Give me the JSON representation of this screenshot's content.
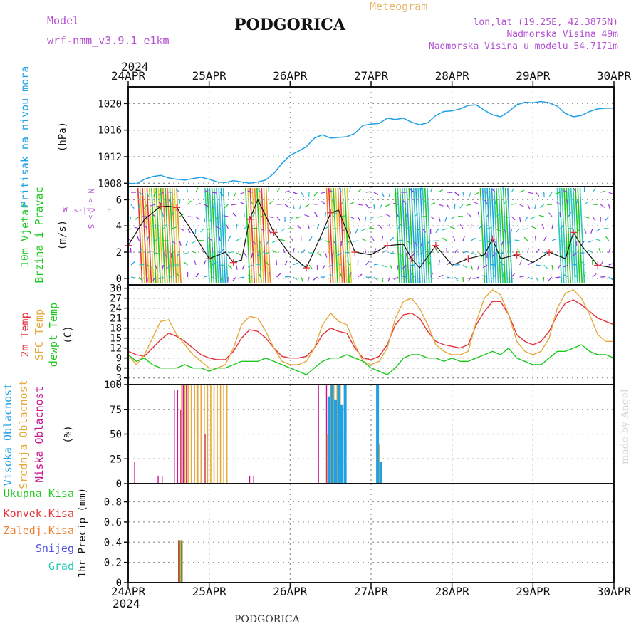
{
  "header": {
    "model_label": "Model",
    "model_name": "wrf-nmm_v3.9.1 e1km",
    "title": "PODGORICA",
    "meteogram_label": "Meteogram",
    "coords": "lon,lat (19.25E, 42.3875N)",
    "elev": "Nadmorska Visina 49m",
    "elev_model": "Nadmorska Visina u modelu 54.7171m",
    "footer_title": "PODGORICA",
    "watermark": "made by Angel"
  },
  "colors": {
    "pressure": "#1ea0e6",
    "temp2m": "#e6323c",
    "sfc": "#e6aa3c",
    "dewpt": "#1ec81e",
    "visoka": "#1ea0e6",
    "srednja": "#e6aa3c",
    "niska": "#c8148c",
    "ukupna": "#1ec81e",
    "konvek": "#e6323c",
    "zaledj": "#f08232",
    "snijeg": "#5050e6",
    "grad": "#28c8b4",
    "title_purple": "#b450d2",
    "meteogram": "#e6b464"
  },
  "time_axis": {
    "top_year": "2024",
    "bottom_year": "2024",
    "ticks": [
      "24APR",
      "25APR",
      "26APR",
      "27APR",
      "28APR",
      "29APR",
      "30APR"
    ]
  },
  "chart_data": [
    {
      "type": "line",
      "panel": "pressure",
      "title": "",
      "ylabel": "Pritisak na nivou mora",
      "unit": "(hPa)",
      "ylim": [
        1007.5,
        1022.5
      ],
      "yticks": [
        "1008",
        "1012",
        "1016",
        "1020"
      ],
      "x_days": [
        0,
        0.1,
        0.2,
        0.3,
        0.4,
        0.5,
        0.6,
        0.7,
        0.8,
        0.9,
        1.0,
        1.1,
        1.2,
        1.3,
        1.4,
        1.5,
        1.6,
        1.7,
        1.8,
        1.9,
        2.0,
        2.1,
        2.2,
        2.3,
        2.4,
        2.5,
        2.6,
        2.7,
        2.8,
        2.9,
        3.0,
        3.1,
        3.2,
        3.3,
        3.4,
        3.5,
        3.6,
        3.7,
        3.8,
        3.9,
        4.0,
        4.1,
        4.2,
        4.3,
        4.4,
        4.5,
        4.6,
        4.7,
        4.8,
        4.9,
        5.0,
        5.1,
        5.2,
        5.3,
        5.4,
        5.5,
        5.6,
        5.7,
        5.8,
        5.9,
        6.0
      ],
      "series": [
        {
          "values": [
            1008.0,
            1007.9,
            1008.6,
            1009.0,
            1009.2,
            1008.8,
            1008.6,
            1008.5,
            1008.7,
            1008.9,
            1008.6,
            1008.2,
            1008.1,
            1008.4,
            1008.2,
            1008.0,
            1008.2,
            1008.5,
            1009.5,
            1011.0,
            1012.2,
            1012.8,
            1013.5,
            1014.8,
            1015.3,
            1014.8,
            1014.9,
            1015.0,
            1015.5,
            1016.7,
            1016.9,
            1017.0,
            1017.8,
            1017.6,
            1017.8,
            1017.2,
            1016.8,
            1017.1,
            1018.2,
            1018.8,
            1018.9,
            1019.2,
            1019.7,
            1019.8,
            1019.0,
            1018.3,
            1018.0,
            1018.8,
            1019.8,
            1020.2,
            1020.1,
            1020.3,
            1020.1,
            1019.6,
            1018.5,
            1018.0,
            1018.2,
            1018.8,
            1019.2,
            1019.3,
            1019.3
          ]
        }
      ]
    },
    {
      "type": "line",
      "panel": "wind",
      "title": "",
      "ylabel_1": "10m Vjetar",
      "ylabel_2": "Brzina i Pravac",
      "unit": "(m/s)",
      "legend_n": "N",
      "legend_w": "W",
      "legend_e": "E",
      "legend_s": "S",
      "legend_arrow_v": "<-|->",
      "legend_arrow_h": "<-|->",
      "ylim": [
        -0.5,
        7
      ],
      "yticks": [
        "0",
        "2",
        "4",
        "6"
      ],
      "x_days": [
        0,
        0.2,
        0.4,
        0.5,
        0.6,
        0.8,
        1.0,
        1.2,
        1.3,
        1.4,
        1.5,
        1.6,
        1.8,
        2.0,
        2.2,
        2.4,
        2.5,
        2.6,
        2.8,
        3.0,
        3.2,
        3.4,
        3.5,
        3.6,
        3.8,
        4.0,
        4.2,
        4.4,
        4.5,
        4.6,
        4.8,
        5.0,
        5.2,
        5.4,
        5.5,
        5.6,
        5.8,
        6.0
      ],
      "series": [
        {
          "name": "brzina",
          "values": [
            2.5,
            4.5,
            5.5,
            5.5,
            5.4,
            3.5,
            1.5,
            2.0,
            1.2,
            1.4,
            4.5,
            6.0,
            3.5,
            1.8,
            0.8,
            3.5,
            5.0,
            5.2,
            2.0,
            1.8,
            2.5,
            2.6,
            1.5,
            0.8,
            2.5,
            1.0,
            1.5,
            1.8,
            3.0,
            1.5,
            1.8,
            1.2,
            2.0,
            1.5,
            3.5,
            2.5,
            1.0,
            0.8
          ]
        }
      ]
    },
    {
      "type": "line",
      "panel": "temperature",
      "title": "",
      "ylabel_temp": "2m Temp",
      "ylabel_sfc": "SFC Temp",
      "ylabel_dew": "dewpt Temp",
      "unit": "(C)",
      "ylim": [
        1,
        31
      ],
      "yticks": [
        "3",
        "6",
        "9",
        "12",
        "15",
        "18",
        "21",
        "24",
        "27",
        "30"
      ],
      "x_days": [
        0,
        0.1,
        0.2,
        0.3,
        0.4,
        0.5,
        0.6,
        0.7,
        0.8,
        0.9,
        1.0,
        1.1,
        1.2,
        1.3,
        1.4,
        1.5,
        1.6,
        1.7,
        1.8,
        1.9,
        2.0,
        2.1,
        2.2,
        2.3,
        2.4,
        2.5,
        2.6,
        2.7,
        2.8,
        2.9,
        3.0,
        3.1,
        3.2,
        3.3,
        3.4,
        3.5,
        3.6,
        3.7,
        3.8,
        3.9,
        4.0,
        4.1,
        4.2,
        4.3,
        4.4,
        4.5,
        4.6,
        4.7,
        4.8,
        4.9,
        5.0,
        5.1,
        5.2,
        5.3,
        5.4,
        5.5,
        5.6,
        5.7,
        5.8,
        5.9,
        6.0
      ],
      "series": [
        {
          "name": "2m Temp",
          "values": [
            11,
            10,
            9.5,
            12,
            14.5,
            16.5,
            15.5,
            14,
            12,
            10,
            9,
            8.5,
            8.5,
            11,
            15,
            17.5,
            17,
            15,
            12,
            9.5,
            9,
            9,
            9.5,
            12,
            16,
            18,
            17,
            16.5,
            12,
            9,
            8.5,
            9.5,
            13,
            19,
            22,
            22.5,
            21,
            17,
            14,
            13,
            12.5,
            12,
            13,
            19,
            23,
            26,
            26,
            22,
            16,
            14,
            13,
            14,
            17,
            22,
            25.5,
            26.5,
            25,
            23,
            21,
            20,
            19
          ]
        },
        {
          "name": "SFC Temp",
          "values": [
            10,
            7,
            10,
            15,
            20,
            20.5,
            16,
            13,
            10,
            8,
            6,
            6,
            7,
            12,
            19,
            21.5,
            21,
            17,
            12,
            8,
            7,
            7,
            8,
            12,
            19,
            22.5,
            20,
            19,
            13,
            8,
            7,
            8,
            12,
            21,
            26,
            27,
            24,
            19,
            13,
            11,
            10,
            10,
            11,
            20,
            27,
            29.5,
            28,
            22,
            14,
            11,
            10,
            11,
            15,
            24,
            28.5,
            29.5,
            27,
            22,
            16,
            14,
            14
          ]
        },
        {
          "name": "dewpt Temp",
          "values": [
            10,
            8,
            9,
            7,
            6,
            6,
            6,
            7,
            6,
            6,
            5,
            6,
            6,
            7,
            8,
            8,
            8,
            9,
            8,
            7,
            6,
            5,
            4,
            6,
            8,
            9,
            9,
            10,
            9,
            8,
            6,
            5,
            4,
            6,
            9,
            10,
            10,
            9,
            9,
            8,
            9,
            8,
            8,
            9,
            10,
            11,
            10,
            12,
            9,
            8,
            7,
            7,
            9,
            11,
            11,
            12,
            13,
            11,
            10,
            10,
            9
          ]
        }
      ]
    },
    {
      "type": "bar",
      "panel": "cloud",
      "title": "",
      "ylabel_visoka": "Visoka Oblacnost",
      "ylabel_srednja": "Srednja Oblacnost",
      "ylabel_niska": "Niska Oblacnost",
      "unit": "(%)",
      "ylim": [
        0,
        100
      ],
      "yticks": [
        "0",
        "25",
        "50",
        "75",
        "100"
      ],
      "series": [
        {
          "name": "Niska",
          "x_days": [
            0.08,
            0.37,
            0.42,
            0.57,
            0.61,
            0.65,
            0.68,
            0.72,
            0.85,
            0.95,
            1.5,
            1.55,
            2.35,
            2.45
          ],
          "values": [
            22,
            8,
            8,
            95,
            95,
            75,
            100,
            100,
            100,
            50,
            8,
            8,
            100,
            100
          ]
        },
        {
          "name": "Srednja",
          "x_days": [
            0.66,
            0.7,
            0.74,
            0.78,
            0.82,
            0.86,
            0.9,
            0.94,
            0.98,
            1.02,
            1.06,
            1.1,
            1.14,
            1.18,
            1.22,
            2.46,
            2.5,
            2.54,
            2.58,
            2.62,
            3.1
          ],
          "values": [
            100,
            100,
            100,
            100,
            100,
            100,
            100,
            100,
            100,
            100,
            100,
            100,
            100,
            100,
            100,
            50,
            100,
            100,
            100,
            100,
            40
          ]
        },
        {
          "name": "Visoka",
          "x_days": [
            2.48,
            2.52,
            2.56,
            2.6,
            2.64,
            2.68,
            3.08,
            3.12
          ],
          "values": [
            88,
            100,
            85,
            100,
            80,
            100,
            100,
            22
          ]
        }
      ]
    },
    {
      "type": "bar",
      "panel": "precip",
      "title": "",
      "ylabel": "1hr Precip (mm)",
      "legend_ukupna": "Ukupna Kisa",
      "legend_konvek": "Konvek.Kisa",
      "legend_zaledj": "Zaledj.Kisa",
      "legend_snijeg": "Snijeg",
      "legend_grad": "Grad",
      "ylim": [
        0,
        0.98
      ],
      "yticks": [
        "0",
        "0.2",
        "0.4",
        "0.6",
        "0.8"
      ],
      "series": [
        {
          "name": "Ukupna Kisa",
          "x_days": [
            0.63,
            0.66
          ],
          "values": [
            0.42,
            0.42
          ]
        },
        {
          "name": "Konvek.Kisa",
          "x_days": [
            0.625
          ],
          "values": [
            0.42
          ]
        }
      ]
    }
  ]
}
